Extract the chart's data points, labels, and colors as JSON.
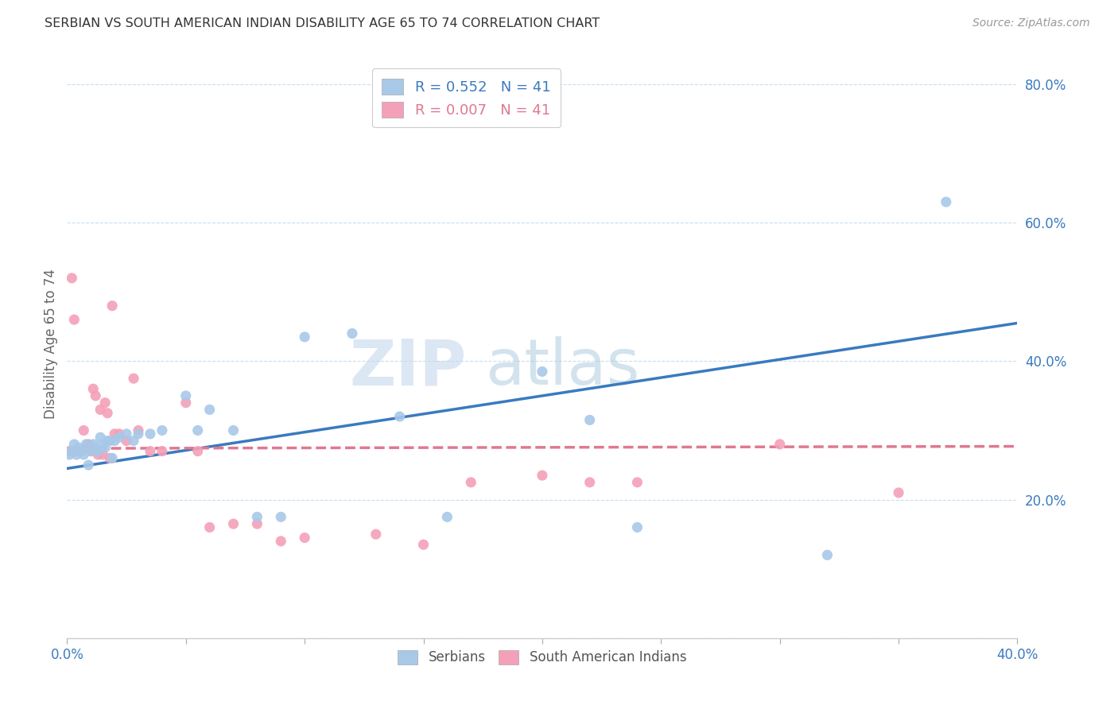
{
  "title": "SERBIAN VS SOUTH AMERICAN INDIAN DISABILITY AGE 65 TO 74 CORRELATION CHART",
  "source": "Source: ZipAtlas.com",
  "ylabel": "Disability Age 65 to 74",
  "xlim": [
    0.0,
    0.4
  ],
  "ylim": [
    0.0,
    0.85
  ],
  "x_ticks": [
    0.0,
    0.05,
    0.1,
    0.15,
    0.2,
    0.25,
    0.3,
    0.35,
    0.4
  ],
  "x_tick_labels": [
    "0.0%",
    "",
    "",
    "",
    "",
    "",
    "",
    "",
    "40.0%"
  ],
  "y_ticks": [
    0.0,
    0.2,
    0.4,
    0.6,
    0.8
  ],
  "y_tick_labels": [
    "",
    "20.0%",
    "40.0%",
    "60.0%",
    "80.0%"
  ],
  "R_serbian": 0.552,
  "N_serbian": 41,
  "R_sam_indian": 0.007,
  "N_sam_indian": 41,
  "watermark_zip": "ZIP",
  "watermark_atlas": "atlas",
  "serbian_color": "#a8c8e8",
  "sam_color": "#f4a0b8",
  "serbian_line_color": "#3a7abf",
  "sam_line_color": "#e07890",
  "legend_serbian_label": "R = 0.552   N = 41",
  "legend_sam_label": "R = 0.007   N = 41",
  "serbian_x": [
    0.001,
    0.002,
    0.003,
    0.004,
    0.005,
    0.006,
    0.007,
    0.008,
    0.009,
    0.01,
    0.011,
    0.012,
    0.013,
    0.014,
    0.015,
    0.016,
    0.017,
    0.018,
    0.019,
    0.02,
    0.022,
    0.025,
    0.028,
    0.03,
    0.035,
    0.04,
    0.05,
    0.055,
    0.06,
    0.07,
    0.08,
    0.09,
    0.1,
    0.12,
    0.14,
    0.16,
    0.2,
    0.22,
    0.24,
    0.32,
    0.37
  ],
  "serbian_y": [
    0.265,
    0.27,
    0.28,
    0.265,
    0.275,
    0.27,
    0.265,
    0.28,
    0.25,
    0.27,
    0.28,
    0.275,
    0.27,
    0.29,
    0.28,
    0.275,
    0.285,
    0.285,
    0.26,
    0.285,
    0.29,
    0.295,
    0.285,
    0.295,
    0.295,
    0.3,
    0.35,
    0.3,
    0.33,
    0.3,
    0.175,
    0.175,
    0.435,
    0.44,
    0.32,
    0.175,
    0.385,
    0.315,
    0.16,
    0.12,
    0.63
  ],
  "sam_x": [
    0.001,
    0.002,
    0.003,
    0.004,
    0.005,
    0.006,
    0.007,
    0.008,
    0.009,
    0.01,
    0.011,
    0.012,
    0.013,
    0.014,
    0.015,
    0.016,
    0.017,
    0.018,
    0.019,
    0.02,
    0.022,
    0.025,
    0.028,
    0.03,
    0.035,
    0.04,
    0.05,
    0.055,
    0.06,
    0.07,
    0.08,
    0.09,
    0.1,
    0.13,
    0.15,
    0.17,
    0.2,
    0.22,
    0.24,
    0.3,
    0.35
  ],
  "sam_y": [
    0.27,
    0.52,
    0.46,
    0.27,
    0.27,
    0.27,
    0.3,
    0.275,
    0.28,
    0.27,
    0.36,
    0.35,
    0.265,
    0.33,
    0.265,
    0.34,
    0.325,
    0.26,
    0.48,
    0.295,
    0.295,
    0.285,
    0.375,
    0.3,
    0.27,
    0.27,
    0.34,
    0.27,
    0.16,
    0.165,
    0.165,
    0.14,
    0.145,
    0.15,
    0.135,
    0.225,
    0.235,
    0.225,
    0.225,
    0.28,
    0.21
  ],
  "serbian_trend_x": [
    0.0,
    0.4
  ],
  "serbian_trend_y": [
    0.245,
    0.455
  ],
  "sam_trend_x": [
    0.0,
    0.4
  ],
  "sam_trend_y": [
    0.274,
    0.277
  ],
  "grid_color": "#c8ddf0",
  "spine_color": "#cccccc",
  "tick_label_color": "#3a7abf",
  "title_color": "#333333",
  "source_color": "#999999",
  "ylabel_color": "#666666"
}
